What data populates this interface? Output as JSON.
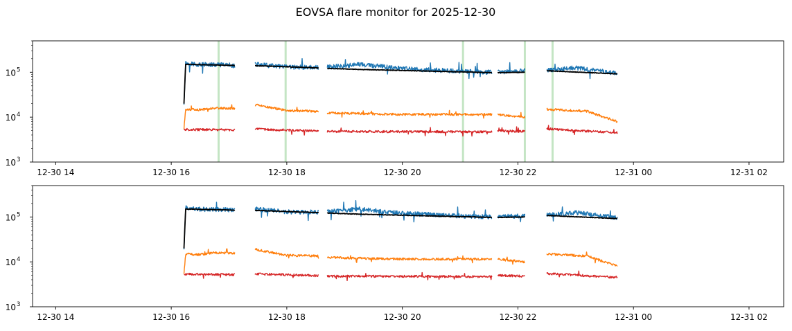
{
  "figure": {
    "title": "EOVSA flare monitor for 2025-12-30"
  },
  "chart_data": [
    {
      "type": "line",
      "panel": "top",
      "yscale": "log",
      "ylim": [
        1000,
        500000
      ],
      "yticks": [
        {
          "value": 1000,
          "base": "10",
          "exp": "3"
        },
        {
          "value": 10000,
          "base": "10",
          "exp": "4"
        },
        {
          "value": 100000,
          "base": "10",
          "exp": "5"
        }
      ],
      "xlim_hours": [
        13.6,
        26.6
      ],
      "xticks": [
        {
          "hour": 14,
          "label": "12-30 14"
        },
        {
          "hour": 16,
          "label": "12-30 16"
        },
        {
          "hour": 18,
          "label": "12-30 18"
        },
        {
          "hour": 20,
          "label": "12-30 20"
        },
        {
          "hour": 22,
          "label": "12-30 22"
        },
        {
          "hour": 24,
          "label": "12-31 00"
        },
        {
          "hour": 26,
          "label": "12-31 02"
        }
      ],
      "flare_markers_hours": [
        16.82,
        17.98,
        21.05,
        22.12,
        22.6
      ],
      "segments_hours": [
        [
          16.22,
          17.1
        ],
        [
          17.45,
          18.55
        ],
        [
          18.7,
          21.55
        ],
        [
          21.65,
          22.12
        ],
        [
          22.5,
          23.72
        ]
      ],
      "series": [
        {
          "color": "#1f77b4",
          "points": [
            [
              16.22,
              20000
            ],
            [
              16.25,
              160000
            ],
            [
              16.5,
              148000
            ],
            [
              17.0,
              145000
            ],
            [
              17.1,
              140000
            ],
            [
              17.45,
              150000
            ],
            [
              18.0,
              130000
            ],
            [
              18.55,
              128000
            ],
            [
              18.7,
              130000
            ],
            [
              19.25,
              150000
            ],
            [
              20.0,
              120000
            ],
            [
              21.0,
              105000
            ],
            [
              21.55,
              100000
            ],
            [
              21.65,
              100000
            ],
            [
              22.12,
              108000
            ],
            [
              22.5,
              110000
            ],
            [
              23.0,
              125000
            ],
            [
              23.72,
              95000
            ]
          ]
        },
        {
          "color": "#ff7f0e",
          "points": [
            [
              16.22,
              5500
            ],
            [
              16.25,
              15000
            ],
            [
              16.5,
              14500
            ],
            [
              16.75,
              16000
            ],
            [
              17.1,
              15500
            ],
            [
              17.45,
              19000
            ],
            [
              18.0,
              14000
            ],
            [
              18.55,
              13500
            ],
            [
              18.7,
              12500
            ],
            [
              20.0,
              11500
            ],
            [
              21.55,
              11500
            ],
            [
              21.65,
              11500
            ],
            [
              22.12,
              10000
            ],
            [
              22.5,
              15000
            ],
            [
              23.2,
              13500
            ],
            [
              23.72,
              8000
            ]
          ]
        },
        {
          "color": "#d62728",
          "points": [
            [
              16.22,
              5300
            ],
            [
              17.1,
              5200
            ],
            [
              17.45,
              5400
            ],
            [
              18.55,
              4900
            ],
            [
              18.7,
              4800
            ],
            [
              21.55,
              4700
            ],
            [
              21.65,
              5000
            ],
            [
              22.12,
              4800
            ],
            [
              22.5,
              5500
            ],
            [
              23.72,
              4500
            ]
          ]
        },
        {
          "color": "#000000",
          "points": [
            [
              16.22,
              20000
            ],
            [
              16.25,
              150000
            ],
            [
              17.1,
              142000
            ],
            [
              17.45,
              140000
            ],
            [
              18.55,
              125000
            ],
            [
              18.7,
              122000
            ],
            [
              19.3,
              115000
            ],
            [
              21.55,
              98000
            ],
            [
              21.65,
              98000
            ],
            [
              22.12,
              100000
            ],
            [
              22.5,
              108000
            ],
            [
              23.72,
              92000
            ]
          ]
        }
      ]
    },
    {
      "type": "line",
      "panel": "bottom",
      "yscale": "log",
      "ylim": [
        1000,
        500000
      ],
      "yticks": [
        {
          "value": 1000,
          "base": "10",
          "exp": "3"
        },
        {
          "value": 10000,
          "base": "10",
          "exp": "4"
        },
        {
          "value": 100000,
          "base": "10",
          "exp": "5"
        }
      ],
      "xlim_hours": [
        13.6,
        26.6
      ],
      "xticks": [
        {
          "hour": 14,
          "label": "12-30 14"
        },
        {
          "hour": 16,
          "label": "12-30 16"
        },
        {
          "hour": 18,
          "label": "12-30 18"
        },
        {
          "hour": 20,
          "label": "12-30 20"
        },
        {
          "hour": 22,
          "label": "12-30 22"
        },
        {
          "hour": 24,
          "label": "12-31 00"
        },
        {
          "hour": 26,
          "label": "12-31 02"
        }
      ],
      "flare_markers_hours": [],
      "segments_hours": [
        [
          16.22,
          17.1
        ],
        [
          17.45,
          18.55
        ],
        [
          18.7,
          21.55
        ],
        [
          21.65,
          22.12
        ],
        [
          22.5,
          23.72
        ]
      ],
      "series": [
        {
          "color": "#1f77b4",
          "points": [
            [
              16.22,
              20000
            ],
            [
              16.25,
              160000
            ],
            [
              16.5,
              148000
            ],
            [
              17.0,
              145000
            ],
            [
              17.1,
              140000
            ],
            [
              17.45,
              150000
            ],
            [
              18.0,
              130000
            ],
            [
              18.55,
              128000
            ],
            [
              18.7,
              130000
            ],
            [
              19.25,
              150000
            ],
            [
              20.0,
              120000
            ],
            [
              21.0,
              105000
            ],
            [
              21.55,
              100000
            ],
            [
              21.65,
              100000
            ],
            [
              22.12,
              108000
            ],
            [
              22.5,
              110000
            ],
            [
              23.0,
              125000
            ],
            [
              23.72,
              95000
            ]
          ]
        },
        {
          "color": "#ff7f0e",
          "points": [
            [
              16.22,
              5500
            ],
            [
              16.25,
              15000
            ],
            [
              16.5,
              14500
            ],
            [
              16.75,
              16000
            ],
            [
              17.1,
              15500
            ],
            [
              17.45,
              19000
            ],
            [
              18.0,
              14000
            ],
            [
              18.55,
              13500
            ],
            [
              18.7,
              12500
            ],
            [
              20.0,
              11500
            ],
            [
              21.55,
              11500
            ],
            [
              21.65,
              11500
            ],
            [
              22.12,
              10000
            ],
            [
              22.5,
              15000
            ],
            [
              23.2,
              13500
            ],
            [
              23.72,
              8000
            ]
          ]
        },
        {
          "color": "#d62728",
          "points": [
            [
              16.22,
              5300
            ],
            [
              17.1,
              5200
            ],
            [
              17.45,
              5400
            ],
            [
              18.55,
              4900
            ],
            [
              18.7,
              4800
            ],
            [
              21.55,
              4700
            ],
            [
              21.65,
              5000
            ],
            [
              22.12,
              4800
            ],
            [
              22.5,
              5500
            ],
            [
              23.72,
              4500
            ]
          ]
        },
        {
          "color": "#000000",
          "points": [
            [
              16.22,
              20000
            ],
            [
              16.25,
              150000
            ],
            [
              17.1,
              142000
            ],
            [
              17.45,
              140000
            ],
            [
              18.55,
              125000
            ],
            [
              18.7,
              122000
            ],
            [
              19.3,
              115000
            ],
            [
              21.55,
              98000
            ],
            [
              21.65,
              98000
            ],
            [
              22.12,
              100000
            ],
            [
              22.5,
              108000
            ],
            [
              23.72,
              92000
            ]
          ]
        }
      ]
    }
  ]
}
